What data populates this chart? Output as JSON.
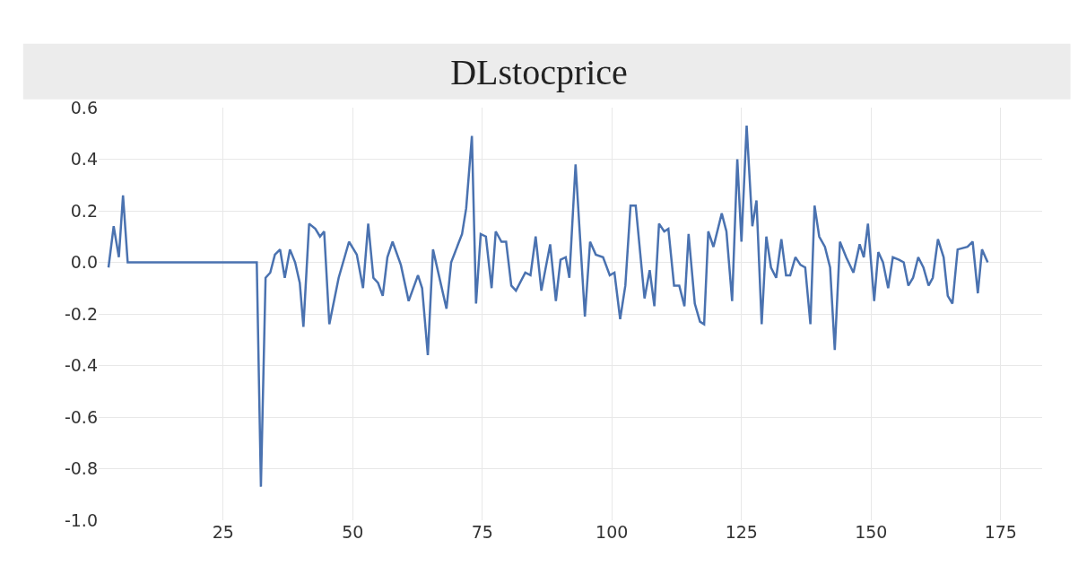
{
  "chart_data": {
    "type": "line",
    "title": "DLstocprice",
    "x": [
      2.9,
      3.9,
      4.9,
      5.7,
      6.6,
      31.5,
      32.3,
      33.2,
      34.1,
      35,
      36,
      36.9,
      37.9,
      38.9,
      39.8,
      40.5,
      41.6,
      42.8,
      43.7,
      44.5,
      45.5,
      47.3,
      49.3,
      50.8,
      52,
      53,
      54,
      54.9,
      55.8,
      56.7,
      57.7,
      59.3,
      60.8,
      62.6,
      63.4,
      64.5,
      65.5,
      68.1,
      69,
      71.1,
      71.9,
      73,
      73.8,
      74.7,
      75.7,
      76.8,
      77.6,
      78.7,
      79.6,
      80.6,
      81.5,
      83.3,
      84.3,
      85.3,
      86.4,
      88.1,
      89.2,
      90.1,
      91.1,
      91.8,
      93,
      94.8,
      95.8,
      96.9,
      98.3,
      99.6,
      100.5,
      101.6,
      102.6,
      103.6,
      104.6,
      106.3,
      107.3,
      108.2,
      109.1,
      110.1,
      110.9,
      112,
      113,
      114,
      114.8,
      116,
      117,
      117.8,
      118.6,
      119.6,
      121.2,
      122.1,
      123.2,
      124.2,
      125,
      126,
      127.1,
      127.9,
      128.9,
      129.8,
      130.7,
      131.7,
      132.7,
      133.6,
      134.4,
      135.4,
      136.4,
      137.3,
      138.3,
      139.1,
      140,
      141.1,
      142.1,
      143,
      144,
      145.2,
      146.6,
      147.8,
      148.6,
      149.4,
      150.6,
      151.4,
      152.3,
      153.3,
      154.2,
      155.4,
      156.3,
      157.2,
      158.1,
      159.1,
      160.1,
      161.1,
      161.9,
      162.9,
      164,
      164.8,
      165.7,
      166.7,
      168.6,
      169.6,
      170.6,
      171.4,
      172.5
    ],
    "series": [
      {
        "color": "#4a72b0",
        "values": [
          -0.02,
          0.14,
          0.02,
          0.26,
          0,
          0,
          -0.87,
          -0.06,
          -0.04,
          0.03,
          0.05,
          -0.06,
          0.05,
          0,
          -0.08,
          -0.25,
          0.15,
          0.13,
          0.1,
          0.12,
          -0.24,
          -0.06,
          0.08,
          0.03,
          -0.1,
          0.15,
          -0.06,
          -0.08,
          -0.13,
          0.02,
          0.08,
          -0.01,
          -0.15,
          -0.05,
          -0.1,
          -0.36,
          0.05,
          -0.18,
          0,
          0.11,
          0.21,
          0.49,
          -0.16,
          0.11,
          0.1,
          -0.1,
          0.12,
          0.08,
          0.08,
          -0.09,
          -0.11,
          -0.04,
          -0.05,
          0.1,
          -0.11,
          0.07,
          -0.15,
          0.01,
          0.02,
          -0.06,
          0.38,
          -0.21,
          0.08,
          0.03,
          0.02,
          -0.05,
          -0.04,
          -0.22,
          -0.09,
          0.22,
          0.22,
          -0.14,
          -0.03,
          -0.17,
          0.15,
          0.12,
          0.13,
          -0.09,
          -0.09,
          -0.17,
          0.11,
          -0.16,
          -0.23,
          -0.24,
          0.12,
          0.06,
          0.19,
          0.12,
          -0.15,
          0.4,
          0.08,
          0.53,
          0.14,
          0.24,
          -0.24,
          0.1,
          -0.02,
          -0.06,
          0.09,
          -0.05,
          -0.05,
          0.02,
          -0.01,
          -0.02,
          -0.24,
          0.22,
          0.1,
          0.06,
          -0.02,
          -0.34,
          0.08,
          0.02,
          -0.04,
          0.07,
          0.02,
          0.15,
          -0.15,
          0.04,
          0,
          -0.1,
          0.02,
          0.01,
          0,
          -0.09,
          -0.06,
          0.02,
          -0.02,
          -0.09,
          -0.06,
          0.09,
          0.02,
          -0.13,
          -0.16,
          0.05,
          0.06,
          0.08,
          -0.12,
          0.05,
          0
        ]
      }
    ],
    "xlim": [
      1,
      183
    ],
    "xticks": [
      25,
      50,
      75,
      100,
      125,
      150,
      175
    ],
    "ylim": [
      -1.0,
      0.6
    ],
    "yticks": [
      0.6,
      0.4,
      0.2,
      {
        "value": 0,
        "label": "0.0"
      },
      -0.2,
      -0.4,
      -0.6,
      -0.8,
      {
        "value": -1,
        "label": "-1.0"
      }
    ],
    "grid": true,
    "marker": "none",
    "line_style": "solid"
  }
}
